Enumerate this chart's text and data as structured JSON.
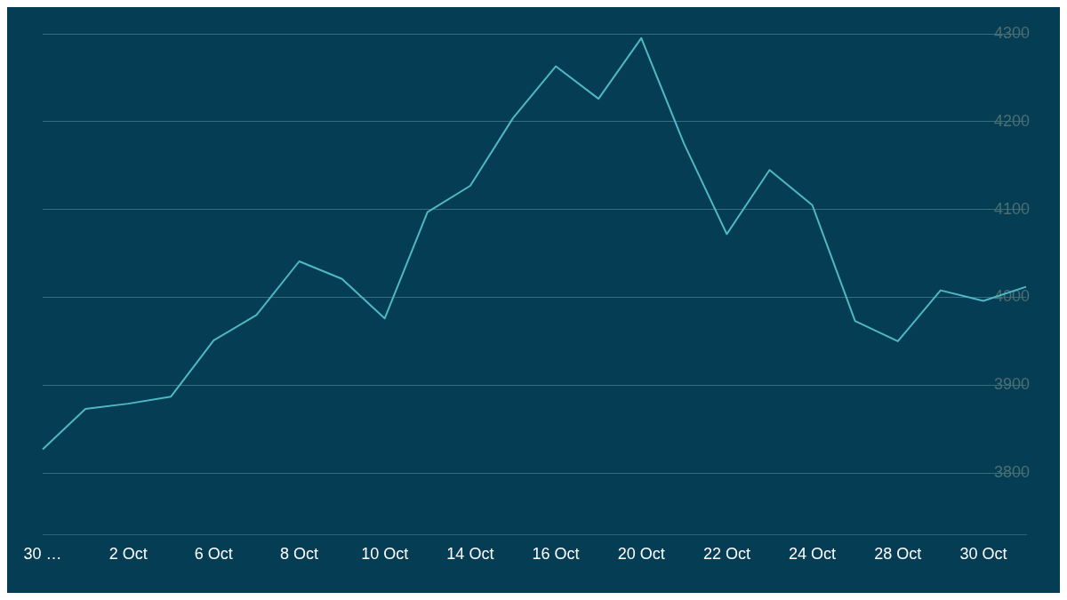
{
  "chart_data": {
    "type": "line",
    "categories": [
      "30 …",
      null,
      "2 Oct",
      null,
      "6 Oct",
      null,
      "8 Oct",
      null,
      "10 Oct",
      null,
      "14 Oct",
      null,
      "16 Oct",
      null,
      "20 Oct",
      null,
      "22 Oct",
      null,
      "24 Oct",
      null,
      "28 Oct",
      null,
      "30 Oct",
      null
    ],
    "series": [
      {
        "color": "#4fb8c4",
        "values": [
          3827,
          3873,
          3879,
          3887,
          3951,
          3980,
          4041,
          4021,
          3976,
          4097,
          4127,
          4204,
          4263,
          4226,
          4295,
          4175,
          4072,
          4145,
          4105,
          3973,
          3950,
          4008,
          3996,
          4012
        ]
      }
    ],
    "ylim": [
      3730,
      4300
    ],
    "yticks": [
      3800,
      3900,
      4000,
      4100,
      4200,
      4300
    ],
    "grid": "y",
    "legend": false,
    "marker": "none",
    "line_style": "solid"
  }
}
